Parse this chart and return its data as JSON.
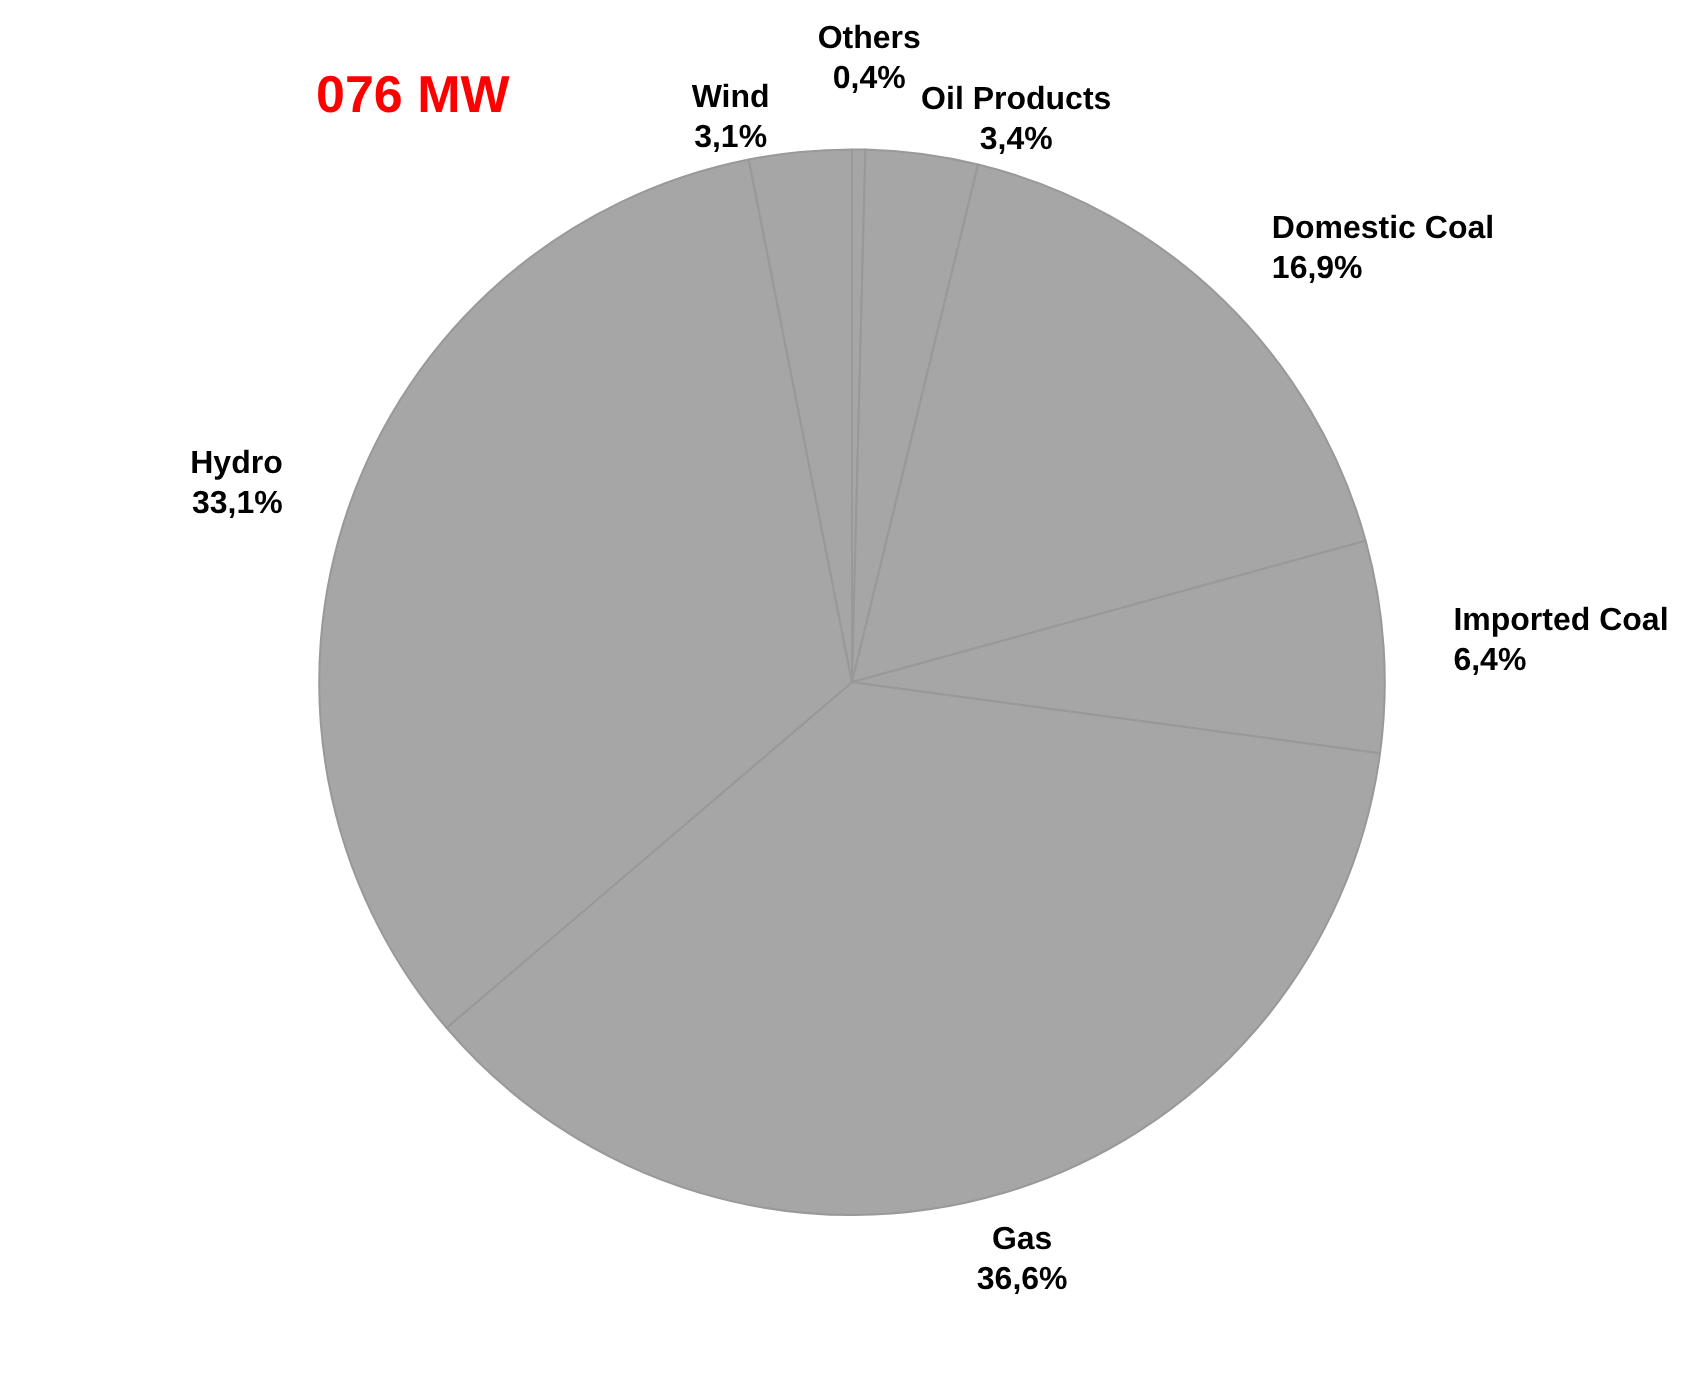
{
  "chart_data": {
    "type": "pie",
    "title": "076 MW",
    "categories": [
      "Others",
      "Oil Products",
      "Domestic Coal",
      "Imported Coal",
      "Gas",
      "Hydro",
      "Wind"
    ],
    "values": [
      0.4,
      3.4,
      16.9,
      6.4,
      36.6,
      33.1,
      3.1
    ],
    "value_labels": [
      "0,4%",
      "3,4%",
      "16,9%",
      "6,4%",
      "36,6%",
      "33,1%",
      "3,1%"
    ],
    "colors": [
      "#a6a6a6",
      "#a6a6a6",
      "#a6a6a6",
      "#a6a6a6",
      "#a6a6a6",
      "#a6a6a6",
      "#a6a6a6"
    ],
    "legend": false
  }
}
